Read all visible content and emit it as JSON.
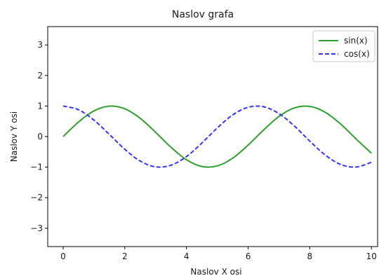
{
  "chart_data": {
    "type": "line",
    "title": "Naslov grafa",
    "xlabel": "Naslov X osi",
    "ylabel": "Naslov Y osi",
    "xlim": [
      -0.5,
      10.2
    ],
    "ylim": [
      -3.6,
      3.6
    ],
    "xticks": [
      0,
      2,
      4,
      6,
      8,
      10
    ],
    "xtick_labels": [
      "0",
      "2",
      "4",
      "6",
      "8",
      "10"
    ],
    "yticks": [
      -3,
      -2,
      -1,
      0,
      1,
      2,
      3
    ],
    "ytick_labels": [
      "−3",
      "−2",
      "−1",
      "0",
      "1",
      "2",
      "3"
    ],
    "grid": false,
    "legend_position": "top-right",
    "series": [
      {
        "name": "sin(x)",
        "color": "#2ca02c",
        "style": "solid",
        "x": [
          0,
          0.5,
          1,
          1.5,
          2,
          2.5,
          3,
          3.5,
          4,
          4.5,
          5,
          5.5,
          6,
          6.5,
          7,
          7.5,
          8,
          8.5,
          9,
          9.5,
          10
        ],
        "y": [
          0,
          0.479,
          0.841,
          0.997,
          0.909,
          0.598,
          0.141,
          -0.351,
          -0.757,
          -0.978,
          -0.959,
          -0.706,
          -0.279,
          0.215,
          0.657,
          0.938,
          0.989,
          0.798,
          0.412,
          -0.075,
          -0.544
        ]
      },
      {
        "name": "cos(x)",
        "color": "#3333ff",
        "style": "dashed",
        "x": [
          0,
          0.5,
          1,
          1.5,
          2,
          2.5,
          3,
          3.5,
          4,
          4.5,
          5,
          5.5,
          6,
          6.5,
          7,
          7.5,
          8,
          8.5,
          9,
          9.5,
          10
        ],
        "y": [
          1,
          0.878,
          0.54,
          0.071,
          -0.416,
          -0.801,
          -0.99,
          -0.936,
          -0.654,
          -0.211,
          0.284,
          0.709,
          0.96,
          0.977,
          0.754,
          0.347,
          -0.146,
          -0.602,
          -0.911,
          -0.997,
          -0.839
        ]
      }
    ]
  }
}
